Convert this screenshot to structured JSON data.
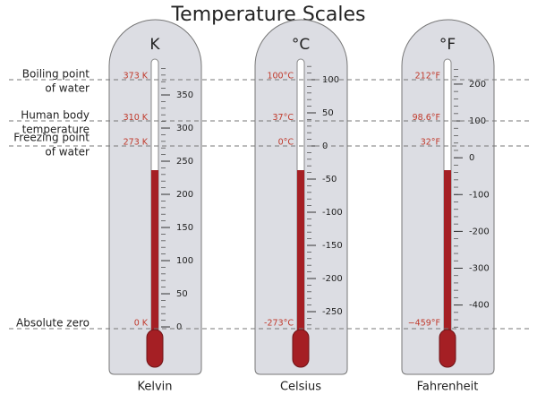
{
  "title": "Temperature Scales",
  "references": [
    {
      "lines": [
        "Boiling point",
        "of water"
      ]
    },
    {
      "lines": [
        "Human body",
        "temperature"
      ]
    },
    {
      "lines": [
        "Freezing point",
        "of water"
      ]
    },
    {
      "lines": [
        "Absolute zero"
      ]
    }
  ],
  "thermometers": [
    {
      "symbol": "K",
      "name": "Kelvin",
      "ticks": [
        0,
        50,
        100,
        150,
        200,
        250,
        300,
        350
      ],
      "markers": [
        {
          "value": 373,
          "label": "373 K"
        },
        {
          "value": 310,
          "label": "310 K"
        },
        {
          "value": 273,
          "label": "273 K"
        },
        {
          "value": 0,
          "label": "0 K"
        }
      ]
    },
    {
      "symbol": "°C",
      "name": "Celsius",
      "ticks": [
        100,
        50,
        0,
        -50,
        -100,
        -150,
        -200,
        -250
      ],
      "markers": [
        {
          "value": 100,
          "label": "100°C"
        },
        {
          "value": 37,
          "label": "37°C"
        },
        {
          "value": 0,
          "label": "0°C"
        },
        {
          "value": -273,
          "label": "-273°C"
        }
      ]
    },
    {
      "symbol": "°F",
      "name": "Fahrenheit",
      "ticks": [
        200,
        100,
        0,
        -100,
        -200,
        -300,
        -400
      ],
      "markers": [
        {
          "value": 212,
          "label": "212°F"
        },
        {
          "value": 98.6,
          "label": "98.6°F"
        },
        {
          "value": 32,
          "label": "32°F"
        },
        {
          "value": -459,
          "label": "−459°F"
        }
      ]
    }
  ]
}
